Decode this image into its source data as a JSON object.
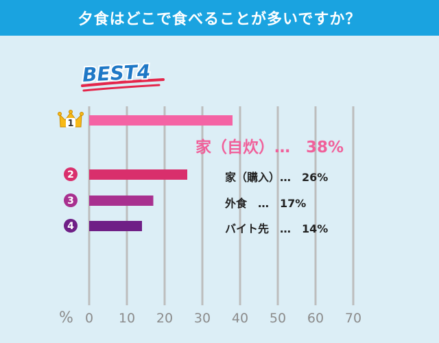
{
  "chart_data": {
    "type": "bar",
    "orientation": "horizontal",
    "title": "夕食はどこで食べることが多いですか？",
    "badge": "BEST4",
    "unit_label": "%",
    "xlim": [
      0,
      70
    ],
    "ticks": [
      0,
      10,
      20,
      30,
      40,
      50,
      60,
      70
    ],
    "tick_labels": [
      "0",
      "10",
      "20",
      "30",
      "40",
      "50",
      "60",
      "70"
    ],
    "grid": true,
    "categories": [
      {
        "rank": "1",
        "label": "家（自炊）…　38%",
        "value": 38,
        "color": "#f463a4"
      },
      {
        "rank": "2",
        "label": "家（購入）…　26%",
        "value": 26,
        "color": "#d92f6c"
      },
      {
        "rank": "3",
        "label": "外食　…　17%",
        "value": 17,
        "color": "#a8308f"
      },
      {
        "rank": "4",
        "label": "バイト先　…　14%",
        "value": 14,
        "color": "#6f1f86"
      }
    ]
  },
  "colors": {
    "background": "#dceef6",
    "title_bar": "#1aa3e0",
    "crown": "#f7b916",
    "gridline": "#bdbdbd",
    "badge_text": "#1f78c6",
    "badge_underline": "#e4254a"
  },
  "icons": {
    "rank1": "crown-icon",
    "rank_other": "circled-number-icon"
  }
}
